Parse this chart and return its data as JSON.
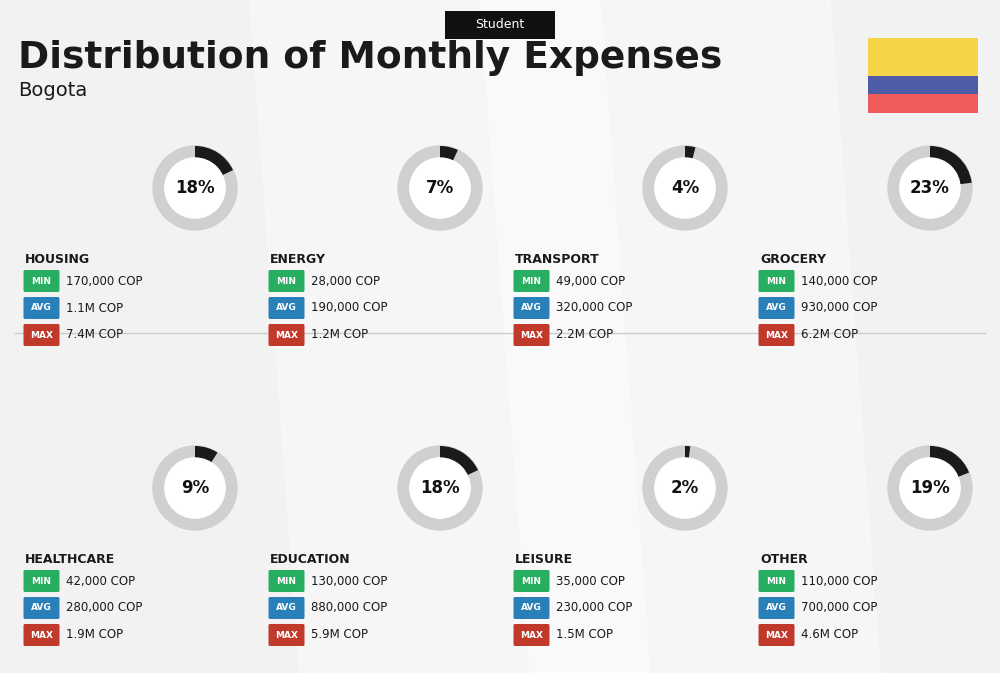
{
  "title": "Distribution of Monthly Expenses",
  "subtitle": "Student",
  "city": "Bogota",
  "background_color": "#f2f2f2",
  "categories": [
    {
      "name": "HOUSING",
      "percent": 18,
      "min": "170,000 COP",
      "avg": "1.1M COP",
      "max": "7.4M COP",
      "row": 0,
      "col": 0
    },
    {
      "name": "ENERGY",
      "percent": 7,
      "min": "28,000 COP",
      "avg": "190,000 COP",
      "max": "1.2M COP",
      "row": 0,
      "col": 1
    },
    {
      "name": "TRANSPORT",
      "percent": 4,
      "min": "49,000 COP",
      "avg": "320,000 COP",
      "max": "2.2M COP",
      "row": 0,
      "col": 2
    },
    {
      "name": "GROCERY",
      "percent": 23,
      "min": "140,000 COP",
      "avg": "930,000 COP",
      "max": "6.2M COP",
      "row": 0,
      "col": 3
    },
    {
      "name": "HEALTHCARE",
      "percent": 9,
      "min": "42,000 COP",
      "avg": "280,000 COP",
      "max": "1.9M COP",
      "row": 1,
      "col": 0
    },
    {
      "name": "EDUCATION",
      "percent": 18,
      "min": "130,000 COP",
      "avg": "880,000 COP",
      "max": "5.9M COP",
      "row": 1,
      "col": 1
    },
    {
      "name": "LEISURE",
      "percent": 2,
      "min": "35,000 COP",
      "avg": "230,000 COP",
      "max": "1.5M COP",
      "row": 1,
      "col": 2
    },
    {
      "name": "OTHER",
      "percent": 19,
      "min": "110,000 COP",
      "avg": "700,000 COP",
      "max": "4.6M COP",
      "row": 1,
      "col": 3
    }
  ],
  "min_color": "#27ae60",
  "avg_color": "#2980b9",
  "max_color": "#c0392b",
  "text_color": "#1a1a1a",
  "arc_bg_color": "#d0d0d0",
  "arc_fg_color": "#1a1a1a",
  "flag_yellow": "#F5D547",
  "flag_blue": "#4E5BA6",
  "flag_red": "#F05A5A",
  "header_bg": "#111111",
  "header_text": "#ffffff",
  "divider_color": "#cccccc"
}
